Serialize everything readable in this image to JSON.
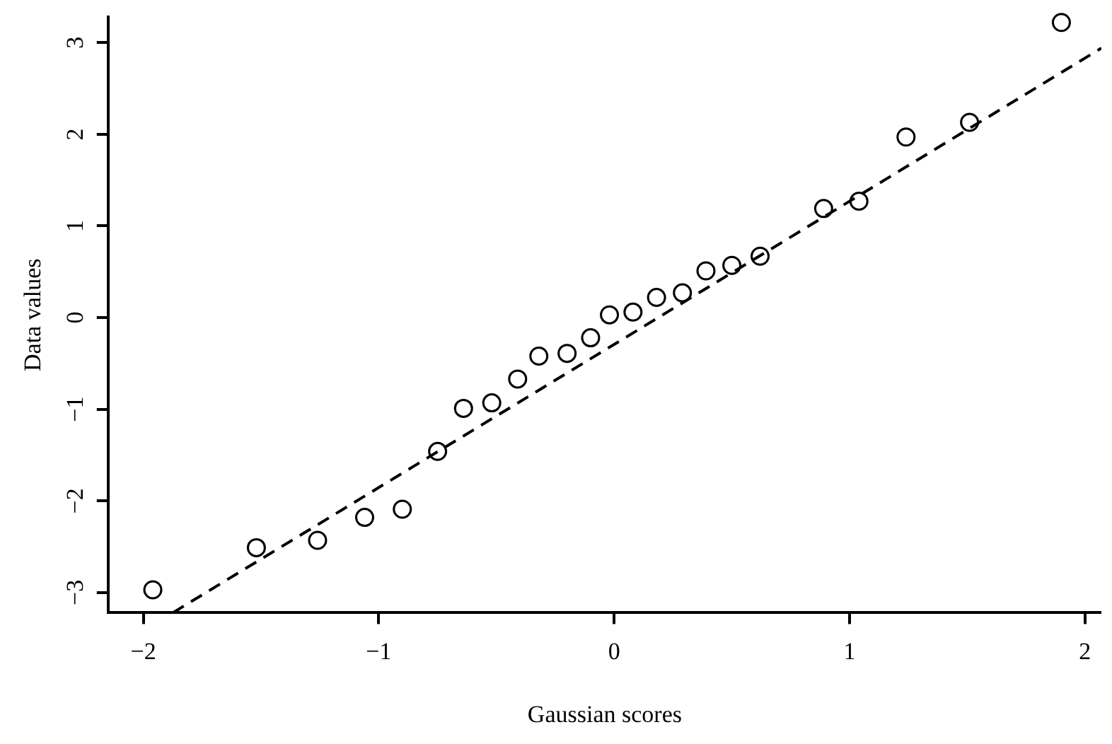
{
  "chart_data": {
    "type": "scatter",
    "xlabel": "Gaussian scores",
    "ylabel": "Data values",
    "xlim": [
      -2.15,
      2.07
    ],
    "xticks": [
      -2,
      -1,
      0,
      1,
      2
    ],
    "ylim": [
      -3.22,
      3.28
    ],
    "yticks": [
      -3,
      -2,
      -1,
      0,
      1,
      2,
      3
    ],
    "grid": false,
    "legend": false,
    "marker": "circle",
    "series": [
      {
        "type": "scatter",
        "color": "#000000",
        "x": [
          -1.96,
          -1.52,
          -1.26,
          -1.06,
          -0.9,
          -0.75,
          -0.64,
          -0.52,
          -0.41,
          -0.32,
          -0.2,
          -0.1,
          -0.02,
          0.08,
          0.18,
          0.29,
          0.39,
          0.5,
          0.62,
          0.89,
          1.04,
          1.24,
          1.51,
          1.9
        ],
        "values": [
          -2.97,
          -2.51,
          -2.43,
          -2.18,
          -2.09,
          -1.46,
          -0.99,
          -0.93,
          -0.67,
          -0.42,
          -0.39,
          -0.22,
          0.03,
          0.06,
          0.22,
          0.27,
          0.51,
          0.57,
          0.67,
          1.19,
          1.27,
          1.97,
          2.13,
          3.22
        ]
      },
      {
        "type": "line",
        "color": "#000000",
        "marker": "none",
        "line_style": "dashed",
        "x": [
          -1.875,
          2.07
        ],
        "values": [
          -3.22,
          2.94
        ]
      }
    ]
  }
}
